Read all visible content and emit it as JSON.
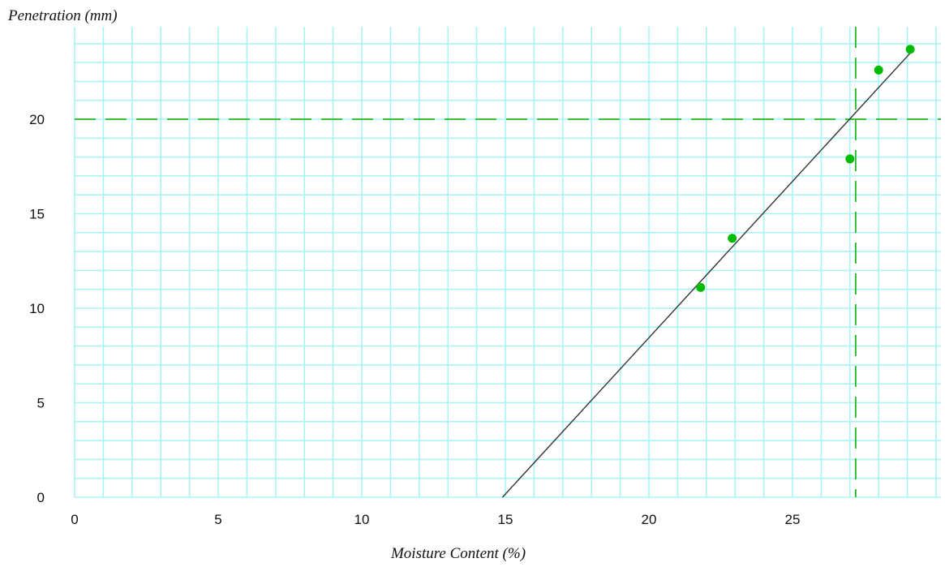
{
  "chart_data": {
    "type": "scatter",
    "title": "",
    "xlabel": "Moisture Content (%)",
    "ylabel": "Penetration (mm)",
    "xlim": [
      0,
      30
    ],
    "ylim": [
      0,
      25
    ],
    "x_ticks": [
      0,
      5,
      10,
      15,
      20,
      25
    ],
    "y_ticks": [
      0,
      5,
      10,
      15,
      20
    ],
    "grid": true,
    "legend": "none",
    "series": [
      {
        "points": [
          {
            "x": 21.8,
            "y": 11.1
          },
          {
            "x": 22.9,
            "y": 13.7
          },
          {
            "x": 27.0,
            "y": 17.9
          },
          {
            "x": 28.0,
            "y": 22.6
          },
          {
            "x": 29.1,
            "y": 23.7
          }
        ]
      }
    ],
    "trend_line": {
      "x1": 14.9,
      "y1": 0,
      "x2": 29.1,
      "y2": 23.5
    },
    "reference_lines": {
      "horizontal_y": 20,
      "vertical_x": 27.2
    },
    "colors": {
      "points": "#00bb00",
      "trend": "#333333",
      "grid": "#aaf3f3",
      "reference": "#22bb22"
    }
  }
}
